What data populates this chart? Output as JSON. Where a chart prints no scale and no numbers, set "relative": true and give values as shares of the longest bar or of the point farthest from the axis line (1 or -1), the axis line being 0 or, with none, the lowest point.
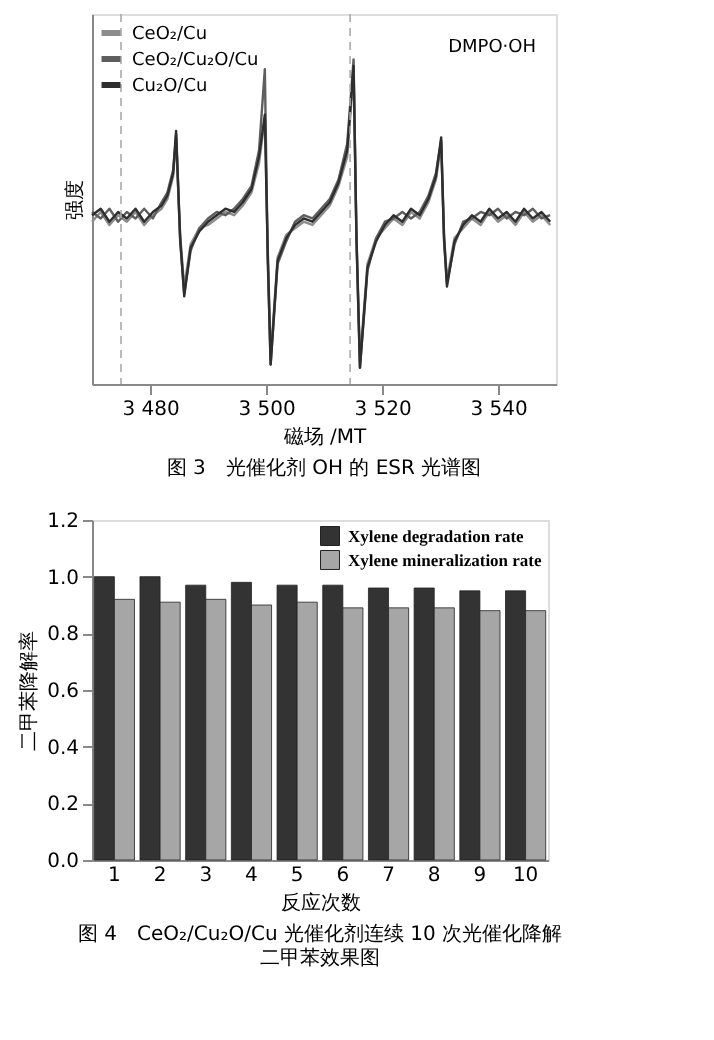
{
  "chart_data": [
    {
      "type": "line",
      "relative": true,
      "xlabel": "磁场 /MT",
      "ylabel": "强度",
      "xlim": [
        3470,
        3550
      ],
      "xticks": [
        {
          "value": 3480,
          "label": "3 480"
        },
        {
          "value": 3500,
          "label": "3 500"
        },
        {
          "value": 3520,
          "label": "3 520"
        },
        {
          "value": 3540,
          "label": "3 540"
        }
      ],
      "tick_labels": "x",
      "legend": "top left",
      "grid": false,
      "line_style": "solid",
      "annotations": [
        "DMPO·OH",
        "图 3　光催化剂 OH 的 ESR 光谱图"
      ],
      "ref_lines": [
        {
          "axis": "x",
          "value": 3475,
          "label": null,
          "color": "#aaaaaa",
          "line_style": "dashed"
        },
        {
          "axis": "x",
          "value": 3514.5,
          "label": null,
          "color": "#aaaaaa",
          "line_style": "dashed"
        }
      ],
      "x": [
        3470,
        3471.5,
        3473,
        3474.5,
        3476,
        3477.5,
        3479,
        3480.5,
        3482,
        3483,
        3484,
        3484.5,
        3485.2,
        3485.9,
        3487,
        3488.5,
        3490,
        3491.5,
        3493,
        3494.5,
        3496,
        3497.5,
        3498.8,
        3499.8,
        3500.3,
        3500.8,
        3502,
        3503.5,
        3505,
        3506.5,
        3508,
        3509.5,
        3511,
        3512.5,
        3514,
        3515.1,
        3515.6,
        3516.2,
        3517.5,
        3519,
        3520.5,
        3522,
        3523.5,
        3525,
        3526.5,
        3528,
        3529.3,
        3530.2,
        3530.7,
        3531.2,
        3532.5,
        3534,
        3535.5,
        3537,
        3538.5,
        3540,
        3541.5,
        3543,
        3544.5,
        3546,
        3547.5,
        3549
      ],
      "series": [
        {
          "name": "CeO₂/Cu",
          "color": "#8c8c8c",
          "values": [
            0.5,
            0.53,
            0.49,
            0.52,
            0.5,
            0.53,
            0.49,
            0.52,
            0.54,
            0.57,
            0.64,
            0.76,
            0.46,
            0.3,
            0.43,
            0.48,
            0.49,
            0.51,
            0.53,
            0.52,
            0.55,
            0.59,
            0.68,
            0.82,
            0.42,
            0.08,
            0.39,
            0.46,
            0.48,
            0.5,
            0.49,
            0.52,
            0.55,
            0.61,
            0.7,
            0.96,
            0.46,
            0.07,
            0.37,
            0.45,
            0.48,
            0.51,
            0.49,
            0.53,
            0.51,
            0.56,
            0.63,
            0.74,
            0.46,
            0.32,
            0.45,
            0.48,
            0.51,
            0.49,
            0.53,
            0.5,
            0.52,
            0.49,
            0.53,
            0.5,
            0.52,
            0.49
          ]
        },
        {
          "name": "CeO₂/Cu₂O/Cu",
          "color": "#5e5e5e",
          "values": [
            0.53,
            0.51,
            0.54,
            0.5,
            0.53,
            0.51,
            0.54,
            0.51,
            0.56,
            0.59,
            0.66,
            0.77,
            0.44,
            0.28,
            0.41,
            0.48,
            0.51,
            0.53,
            0.52,
            0.54,
            0.57,
            0.61,
            0.72,
            0.97,
            0.38,
            0.06,
            0.37,
            0.44,
            0.5,
            0.52,
            0.51,
            0.54,
            0.57,
            0.63,
            0.74,
            1.0,
            0.44,
            0.05,
            0.35,
            0.45,
            0.5,
            0.51,
            0.53,
            0.51,
            0.53,
            0.58,
            0.65,
            0.75,
            0.44,
            0.31,
            0.43,
            0.5,
            0.51,
            0.53,
            0.52,
            0.54,
            0.51,
            0.53,
            0.52,
            0.54,
            0.51,
            0.52
          ]
        },
        {
          "name": "Cu₂O/Cu",
          "color": "#2e2e2e",
          "values": [
            0.52,
            0.54,
            0.5,
            0.53,
            0.51,
            0.54,
            0.5,
            0.53,
            0.55,
            0.58,
            0.65,
            0.78,
            0.45,
            0.27,
            0.42,
            0.47,
            0.5,
            0.52,
            0.54,
            0.53,
            0.56,
            0.6,
            0.7,
            0.83,
            0.4,
            0.06,
            0.38,
            0.45,
            0.49,
            0.51,
            0.5,
            0.53,
            0.56,
            0.62,
            0.72,
            0.98,
            0.45,
            0.05,
            0.36,
            0.44,
            0.49,
            0.52,
            0.5,
            0.54,
            0.52,
            0.57,
            0.64,
            0.76,
            0.45,
            0.3,
            0.44,
            0.49,
            0.52,
            0.5,
            0.54,
            0.51,
            0.53,
            0.5,
            0.54,
            0.51,
            0.53,
            0.5
          ]
        }
      ]
    },
    {
      "type": "bar",
      "xlabel": "反应次数",
      "ylabel": "二甲苯降解率",
      "ylim": [
        0,
        1.2
      ],
      "yticks": [
        {
          "value": 0,
          "label": "0.0"
        },
        0.2,
        0.4,
        0.6,
        0.8,
        {
          "value": 1,
          "label": "1.0"
        },
        1.2
      ],
      "legend": "top right",
      "grid": false,
      "annotations": [
        "图 4　CeO₂/Cu₂O/Cu 光催化剂连续 10 次光催化降解二甲苯效果图"
      ],
      "categories": [
        "1",
        "2",
        "3",
        "4",
        "5",
        "6",
        "7",
        "8",
        "9",
        "10"
      ],
      "series": [
        {
          "name": "Xylene degradation rate",
          "color": "#333333",
          "values": [
            1.0,
            1.0,
            0.97,
            0.98,
            0.97,
            0.97,
            0.96,
            0.96,
            0.95,
            0.95
          ]
        },
        {
          "name": "Xylene mineralization rate",
          "color": "#a6a6a6",
          "values": [
            0.92,
            0.91,
            0.92,
            0.9,
            0.91,
            0.89,
            0.89,
            0.89,
            0.88,
            0.88
          ]
        }
      ]
    }
  ]
}
